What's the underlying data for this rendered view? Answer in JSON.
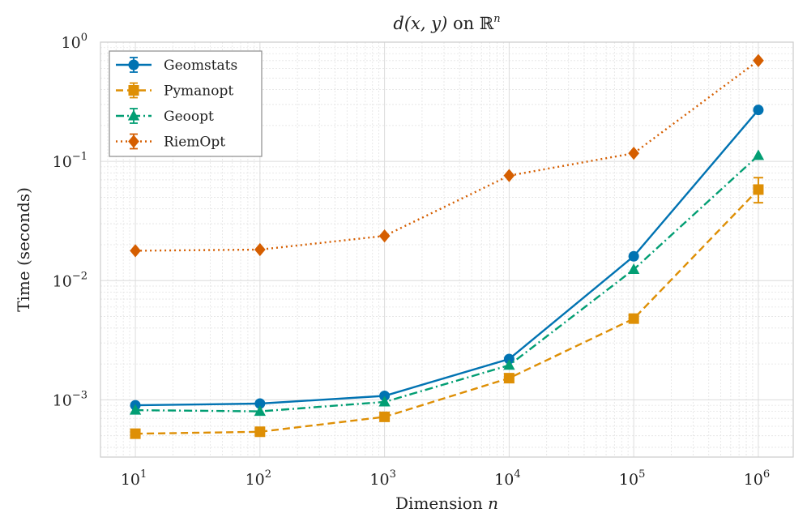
{
  "chart_data": {
    "type": "line",
    "title_prefix": "d(x, y)",
    "title_mid": " on ",
    "title_R": "ℝ",
    "title_sup": "n",
    "xlabel": "Dimension",
    "xlabel_var": "n",
    "ylabel": "Time (seconds)",
    "xscale": "log",
    "yscale": "log",
    "x": [
      10,
      100,
      1000,
      10000,
      100000,
      1000000
    ],
    "x_ticks": [
      {
        "base": "10",
        "exp": "1"
      },
      {
        "base": "10",
        "exp": "2"
      },
      {
        "base": "10",
        "exp": "3"
      },
      {
        "base": "10",
        "exp": "4"
      },
      {
        "base": "10",
        "exp": "5"
      },
      {
        "base": "10",
        "exp": "6"
      }
    ],
    "y_ticks": [
      {
        "value": 0.001,
        "base": "10",
        "exp": "−3"
      },
      {
        "value": 0.01,
        "base": "10",
        "exp": "−2"
      },
      {
        "value": 0.1,
        "base": "10",
        "exp": "−1"
      },
      {
        "value": 1,
        "base": "10",
        "exp": "0"
      }
    ],
    "grid": true,
    "legend_position": "upper-left",
    "series": [
      {
        "name": "Geomstats",
        "color": "#0173b2",
        "marker": "circle",
        "line": "solid",
        "values": [
          0.0009,
          0.00093,
          0.00108,
          0.0022,
          0.016,
          0.27
        ]
      },
      {
        "name": "Pymanopt",
        "color": "#de8f05",
        "marker": "square",
        "line": "dashed",
        "values": [
          0.00052,
          0.00054,
          0.00072,
          0.00152,
          0.0048,
          0.058
        ],
        "errors": [
          [
            0,
            0
          ],
          [
            0,
            0
          ],
          [
            0,
            0
          ],
          [
            0,
            0
          ],
          [
            0,
            0
          ],
          [
            0.045,
            0.073
          ]
        ]
      },
      {
        "name": "Geoopt",
        "color": "#029e73",
        "marker": "triangle",
        "line": "dashdot",
        "values": [
          0.00082,
          0.0008,
          0.00096,
          0.00195,
          0.0124,
          0.112
        ]
      },
      {
        "name": "RiemOpt",
        "color": "#d55e00",
        "marker": "diamond",
        "line": "dotted",
        "values": [
          0.0178,
          0.0182,
          0.0237,
          0.076,
          0.117,
          0.7
        ]
      }
    ]
  }
}
